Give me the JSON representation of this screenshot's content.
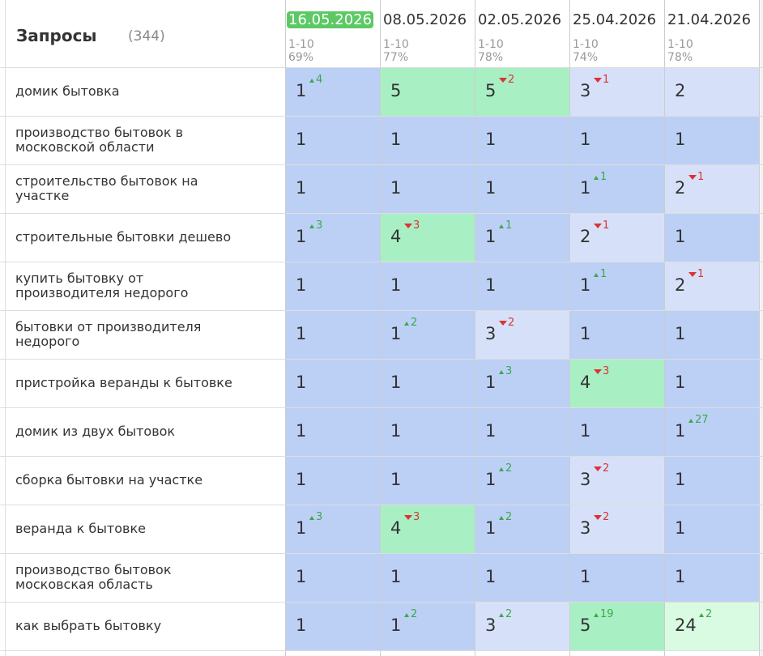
{
  "header": {
    "title": "Запросы",
    "count": "(344)"
  },
  "columns": [
    {
      "date": "16.05.2026",
      "range": "1-10",
      "share": "69%",
      "current": true
    },
    {
      "date": "08.05.2026",
      "range": "1-10",
      "share": "77%"
    },
    {
      "date": "02.05.2026",
      "range": "1-10",
      "share": "78%"
    },
    {
      "date": "25.04.2026",
      "range": "1-10",
      "share": "74%"
    },
    {
      "date": "21.04.2026",
      "range": "1-10",
      "share": "78%"
    }
  ],
  "rows": [
    {
      "query": "домик бытовка",
      "cells": [
        {
          "pos": 1,
          "change": 4,
          "trend": "up"
        },
        {
          "pos": 5
        },
        {
          "pos": 5,
          "change": 2,
          "trend": "down"
        },
        {
          "pos": 3,
          "change": 1,
          "trend": "down"
        },
        {
          "pos": 2
        }
      ]
    },
    {
      "query": "производство бытовок в московской области",
      "cells": [
        {
          "pos": 1
        },
        {
          "pos": 1
        },
        {
          "pos": 1
        },
        {
          "pos": 1
        },
        {
          "pos": 1
        }
      ]
    },
    {
      "query": "строительство бытовок на участке",
      "cells": [
        {
          "pos": 1
        },
        {
          "pos": 1
        },
        {
          "pos": 1
        },
        {
          "pos": 1,
          "change": 1,
          "trend": "up"
        },
        {
          "pos": 2,
          "change": 1,
          "trend": "down"
        }
      ]
    },
    {
      "query": "строительные бытовки дешево",
      "cells": [
        {
          "pos": 1,
          "change": 3,
          "trend": "up"
        },
        {
          "pos": 4,
          "change": 3,
          "trend": "down"
        },
        {
          "pos": 1,
          "change": 1,
          "trend": "up"
        },
        {
          "pos": 2,
          "change": 1,
          "trend": "down"
        },
        {
          "pos": 1
        }
      ]
    },
    {
      "query": "купить бытовку от производителя недорого",
      "cells": [
        {
          "pos": 1
        },
        {
          "pos": 1
        },
        {
          "pos": 1
        },
        {
          "pos": 1,
          "change": 1,
          "trend": "up"
        },
        {
          "pos": 2,
          "change": 1,
          "trend": "down"
        }
      ]
    },
    {
      "query": "бытовки от производителя недорого",
      "cells": [
        {
          "pos": 1
        },
        {
          "pos": 1,
          "change": 2,
          "trend": "up"
        },
        {
          "pos": 3,
          "change": 2,
          "trend": "down"
        },
        {
          "pos": 1
        },
        {
          "pos": 1
        }
      ]
    },
    {
      "query": "пристройка веранды к бытовке",
      "cells": [
        {
          "pos": 1
        },
        {
          "pos": 1
        },
        {
          "pos": 1,
          "change": 3,
          "trend": "up"
        },
        {
          "pos": 4,
          "change": 3,
          "trend": "down"
        },
        {
          "pos": 1
        }
      ]
    },
    {
      "query": "домик из двух бытовок",
      "cells": [
        {
          "pos": 1
        },
        {
          "pos": 1
        },
        {
          "pos": 1
        },
        {
          "pos": 1
        },
        {
          "pos": 1,
          "change": 27,
          "trend": "up"
        }
      ]
    },
    {
      "query": "сборка бытовки на участке",
      "cells": [
        {
          "pos": 1
        },
        {
          "pos": 1
        },
        {
          "pos": 1,
          "change": 2,
          "trend": "up"
        },
        {
          "pos": 3,
          "change": 2,
          "trend": "down"
        },
        {
          "pos": 1
        }
      ]
    },
    {
      "query": "веранда к бытовке",
      "cells": [
        {
          "pos": 1,
          "change": 3,
          "trend": "up"
        },
        {
          "pos": 4,
          "change": 3,
          "trend": "down"
        },
        {
          "pos": 1,
          "change": 2,
          "trend": "up"
        },
        {
          "pos": 3,
          "change": 2,
          "trend": "down"
        },
        {
          "pos": 1
        }
      ]
    },
    {
      "query": "производство бытовок московская область",
      "cells": [
        {
          "pos": 1
        },
        {
          "pos": 1
        },
        {
          "pos": 1
        },
        {
          "pos": 1
        },
        {
          "pos": 1
        }
      ]
    },
    {
      "query": "как выбрать бытовку",
      "cells": [
        {
          "pos": 1
        },
        {
          "pos": 1,
          "change": 2,
          "trend": "up"
        },
        {
          "pos": 3,
          "change": 2,
          "trend": "up"
        },
        {
          "pos": 5,
          "change": 19,
          "trend": "up"
        },
        {
          "pos": 24,
          "change": 2,
          "trend": "up"
        }
      ]
    }
  ]
}
